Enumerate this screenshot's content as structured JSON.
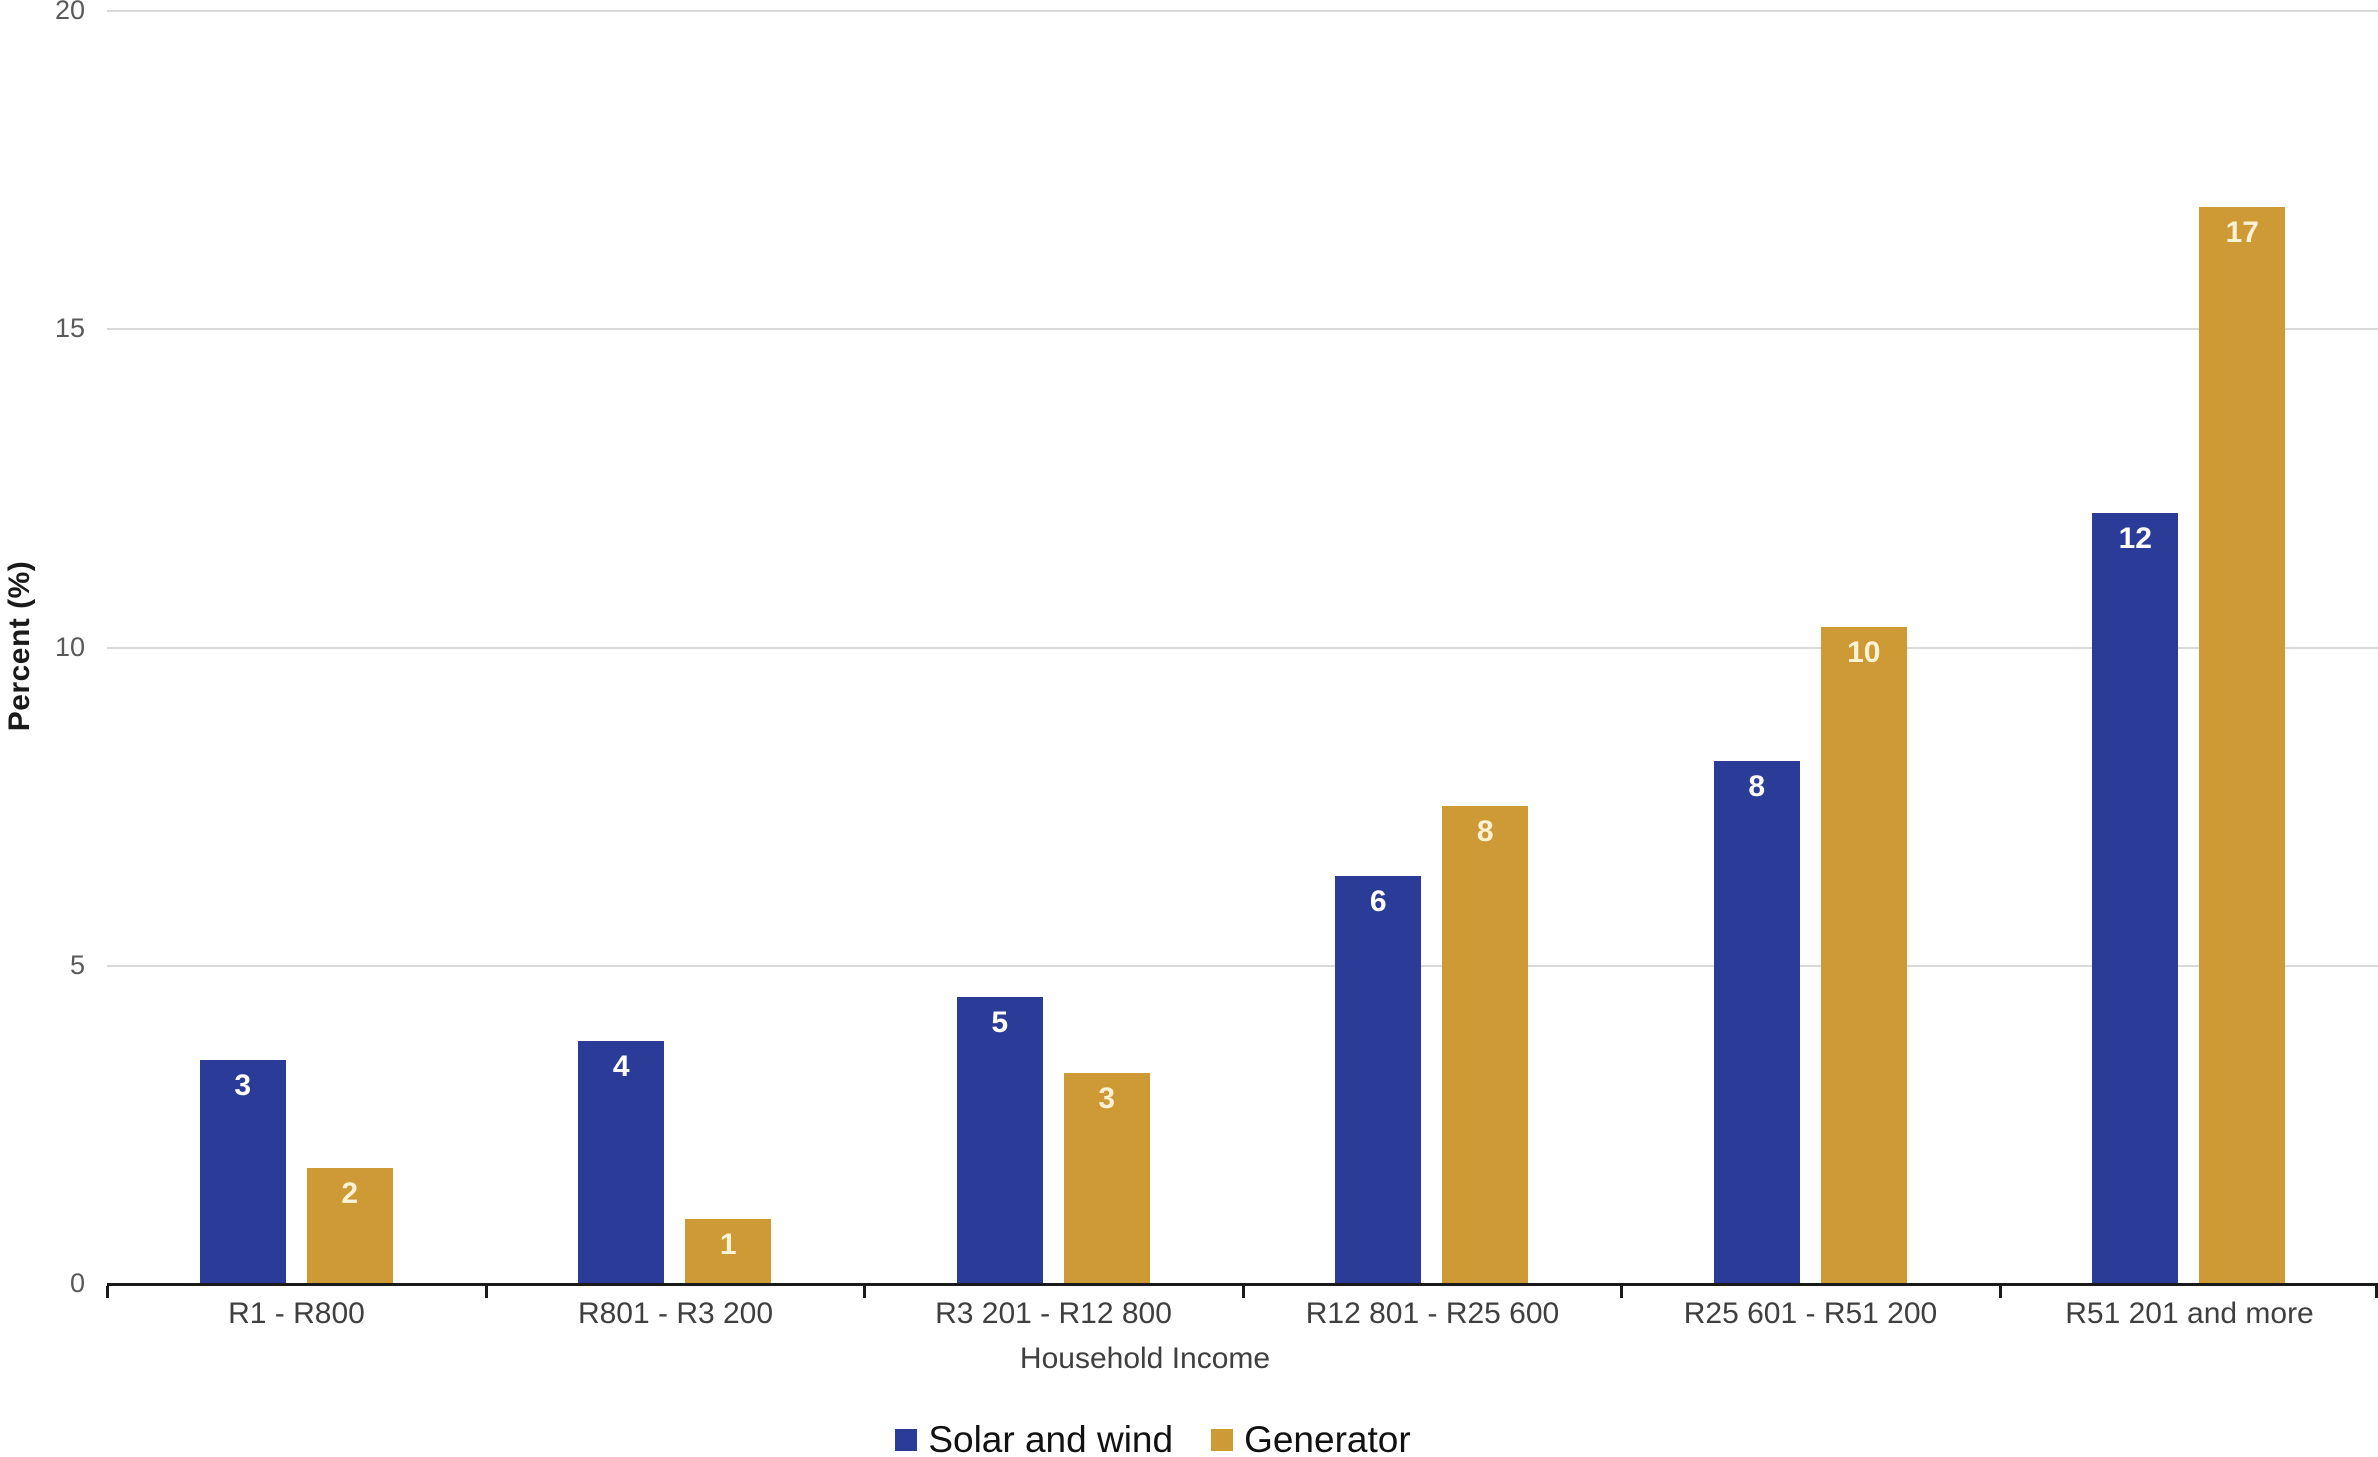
{
  "chart_data": {
    "type": "bar",
    "title": "",
    "xlabel": "Household Income",
    "ylabel": "Percent (%)",
    "ylim": [
      0,
      20
    ],
    "yticks": [
      0,
      5,
      10,
      15,
      20
    ],
    "grid": "horizontal",
    "gridline_color": "#d9d9d9",
    "axis_color": "#1a1a1a",
    "ytick_label_color": "#595959",
    "xtick_label_color": "#3f3f3f",
    "legend_position": "bottom",
    "categories": [
      "R1 - R800",
      "R801 - R3 200",
      "R3 201 - R12 800",
      "R12 801 - R25 600",
      "R25 601 - R51 200",
      "R51 201 and more"
    ],
    "series": [
      {
        "name": "Solar and wind",
        "color": "#2b3b98",
        "label_color": "#ffffff",
        "values": [
          3,
          4,
          5,
          6,
          8,
          12
        ],
        "plot_values": [
          3.5,
          3.8,
          4.5,
          6.4,
          8.2,
          12.1
        ]
      },
      {
        "name": "Generator",
        "color": "#ce9a35",
        "label_color": "#fbf2d5",
        "values": [
          2,
          1,
          3,
          8,
          10,
          17
        ],
        "plot_values": [
          1.8,
          1.0,
          3.3,
          7.5,
          10.3,
          16.9
        ]
      }
    ]
  }
}
